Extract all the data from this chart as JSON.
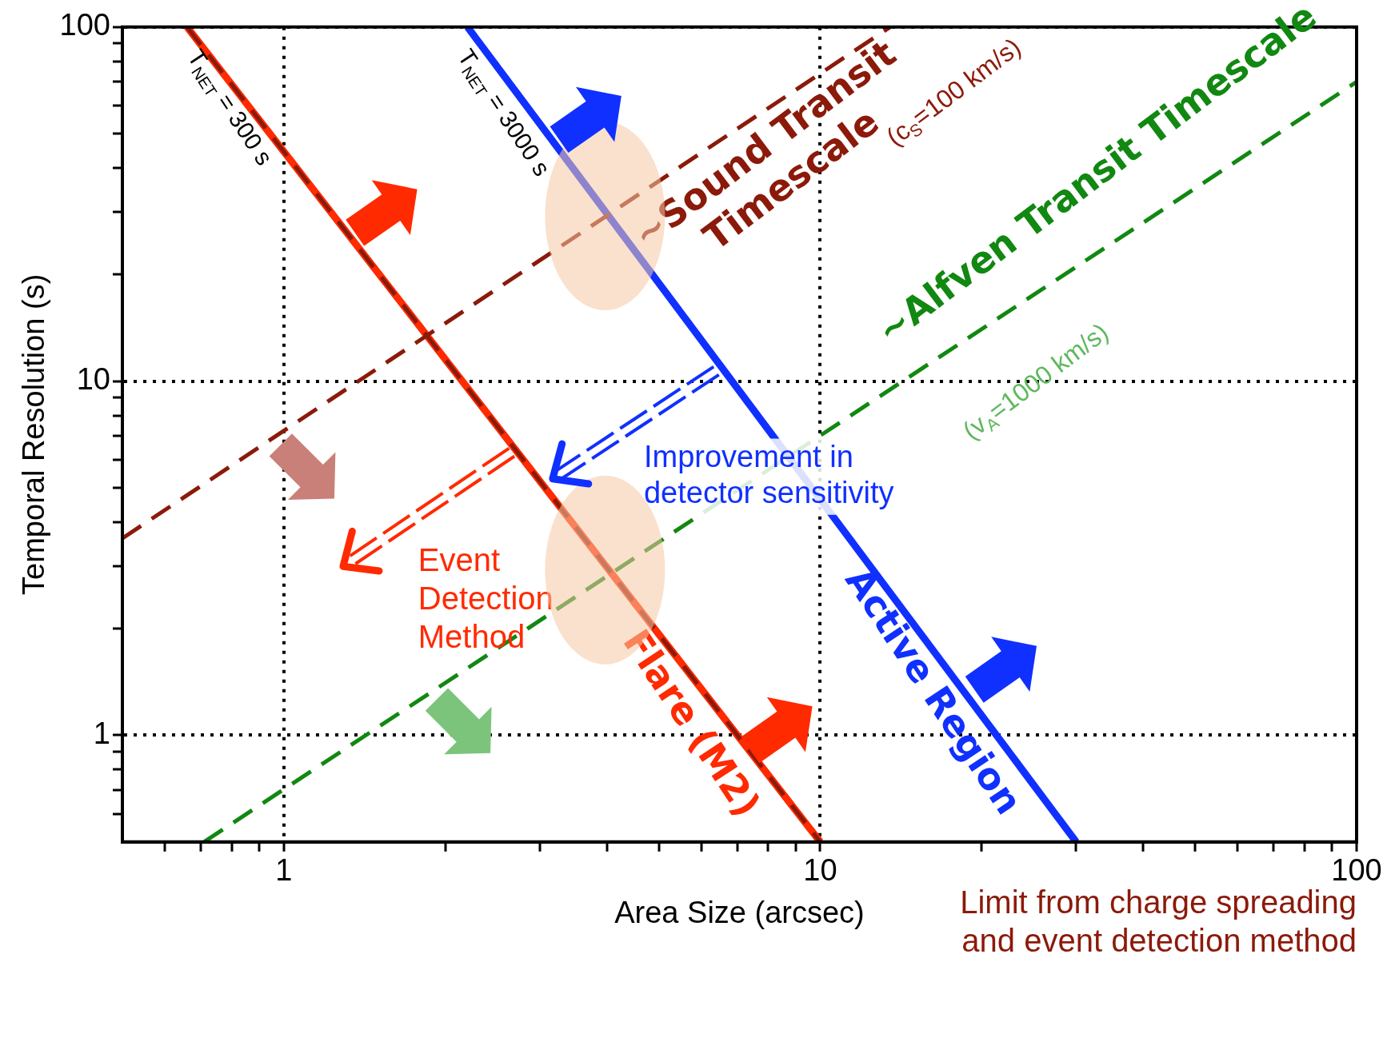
{
  "chart_data": {
    "type": "line",
    "xlabel": "Area Size (arcsec)",
    "ylabel": "Temporal Resolution (s)",
    "log": "xy",
    "grid": true,
    "marker": "none",
    "xlim": [
      0.5,
      100
    ],
    "ylim": [
      0.5,
      100
    ],
    "xticks": [
      {
        "value": 0.6,
        "label": null
      },
      {
        "value": 0.7,
        "label": null
      },
      {
        "value": 0.8,
        "label": null
      },
      {
        "value": 0.9,
        "label": null
      },
      1,
      {
        "value": 2,
        "label": null
      },
      {
        "value": 3,
        "label": null
      },
      {
        "value": 4,
        "label": null
      },
      {
        "value": 5,
        "label": null
      },
      {
        "value": 6,
        "label": null
      },
      {
        "value": 7,
        "label": null
      },
      {
        "value": 8,
        "label": null
      },
      {
        "value": 9,
        "label": null
      },
      10,
      {
        "value": 20,
        "label": null
      },
      {
        "value": 30,
        "label": null
      },
      {
        "value": 40,
        "label": null
      },
      {
        "value": 50,
        "label": null
      },
      {
        "value": 60,
        "label": null
      },
      {
        "value": 70,
        "label": null
      },
      {
        "value": 80,
        "label": null
      },
      {
        "value": 90,
        "label": null
      },
      100
    ],
    "yticks": [
      {
        "value": 0.6,
        "label": null
      },
      {
        "value": 0.7,
        "label": null
      },
      {
        "value": 0.8,
        "label": null
      },
      {
        "value": 0.9,
        "label": null
      },
      1,
      {
        "value": 2,
        "label": null
      },
      {
        "value": 3,
        "label": null
      },
      {
        "value": 4,
        "label": null
      },
      {
        "value": 5,
        "label": null
      },
      {
        "value": 6,
        "label": null
      },
      {
        "value": 7,
        "label": null
      },
      {
        "value": 8,
        "label": null
      },
      {
        "value": 9,
        "label": null
      },
      10,
      {
        "value": 20,
        "label": null
      },
      {
        "value": 30,
        "label": null
      },
      {
        "value": 40,
        "label": null
      },
      {
        "value": 50,
        "label": null
      },
      {
        "value": 60,
        "label": null
      },
      {
        "value": 70,
        "label": null
      },
      {
        "value": 80,
        "label": null
      },
      {
        "value": 90,
        "label": null
      },
      100
    ],
    "series": [
      {
        "type": "line",
        "color": "#ff2a00",
        "line_style": "solid",
        "x": [
          0.66,
          10
        ],
        "values": [
          100,
          0.5
        ]
      },
      {
        "type": "line",
        "color": "#8b1a0a",
        "line_style": "dashed",
        "x": [
          0.66,
          10
        ],
        "values": [
          100,
          0.5
        ]
      },
      {
        "type": "line",
        "color": "#1030ff",
        "line_style": "solid",
        "x": [
          2.2,
          30
        ],
        "values": [
          100,
          0.5
        ]
      },
      {
        "type": "line",
        "color": "#8b1a0a",
        "line_style": "dashed",
        "x": [
          0.5,
          13.5
        ],
        "values": [
          3.6,
          100
        ]
      },
      {
        "type": "line",
        "color": "#118811",
        "line_style": "dashed",
        "x": [
          0.71,
          100
        ],
        "values": [
          0.5,
          70
        ]
      }
    ],
    "annotations": [
      "T$_{NET}$ = 300 s",
      "T$_{NET}$ = 3000 s",
      "~Sound Transit\nTimescale",
      "(c$_{S}$=100 km/s)",
      "~Alfven Transit Timescale",
      "(v$_{A}$=1000 km/s)",
      "Flare (M2)",
      "Active Region",
      "Improvement in\ndetector sensitivity",
      "Event\nDetection\nMethod",
      "Limit from charge spreading\nand event detection method"
    ]
  }
}
